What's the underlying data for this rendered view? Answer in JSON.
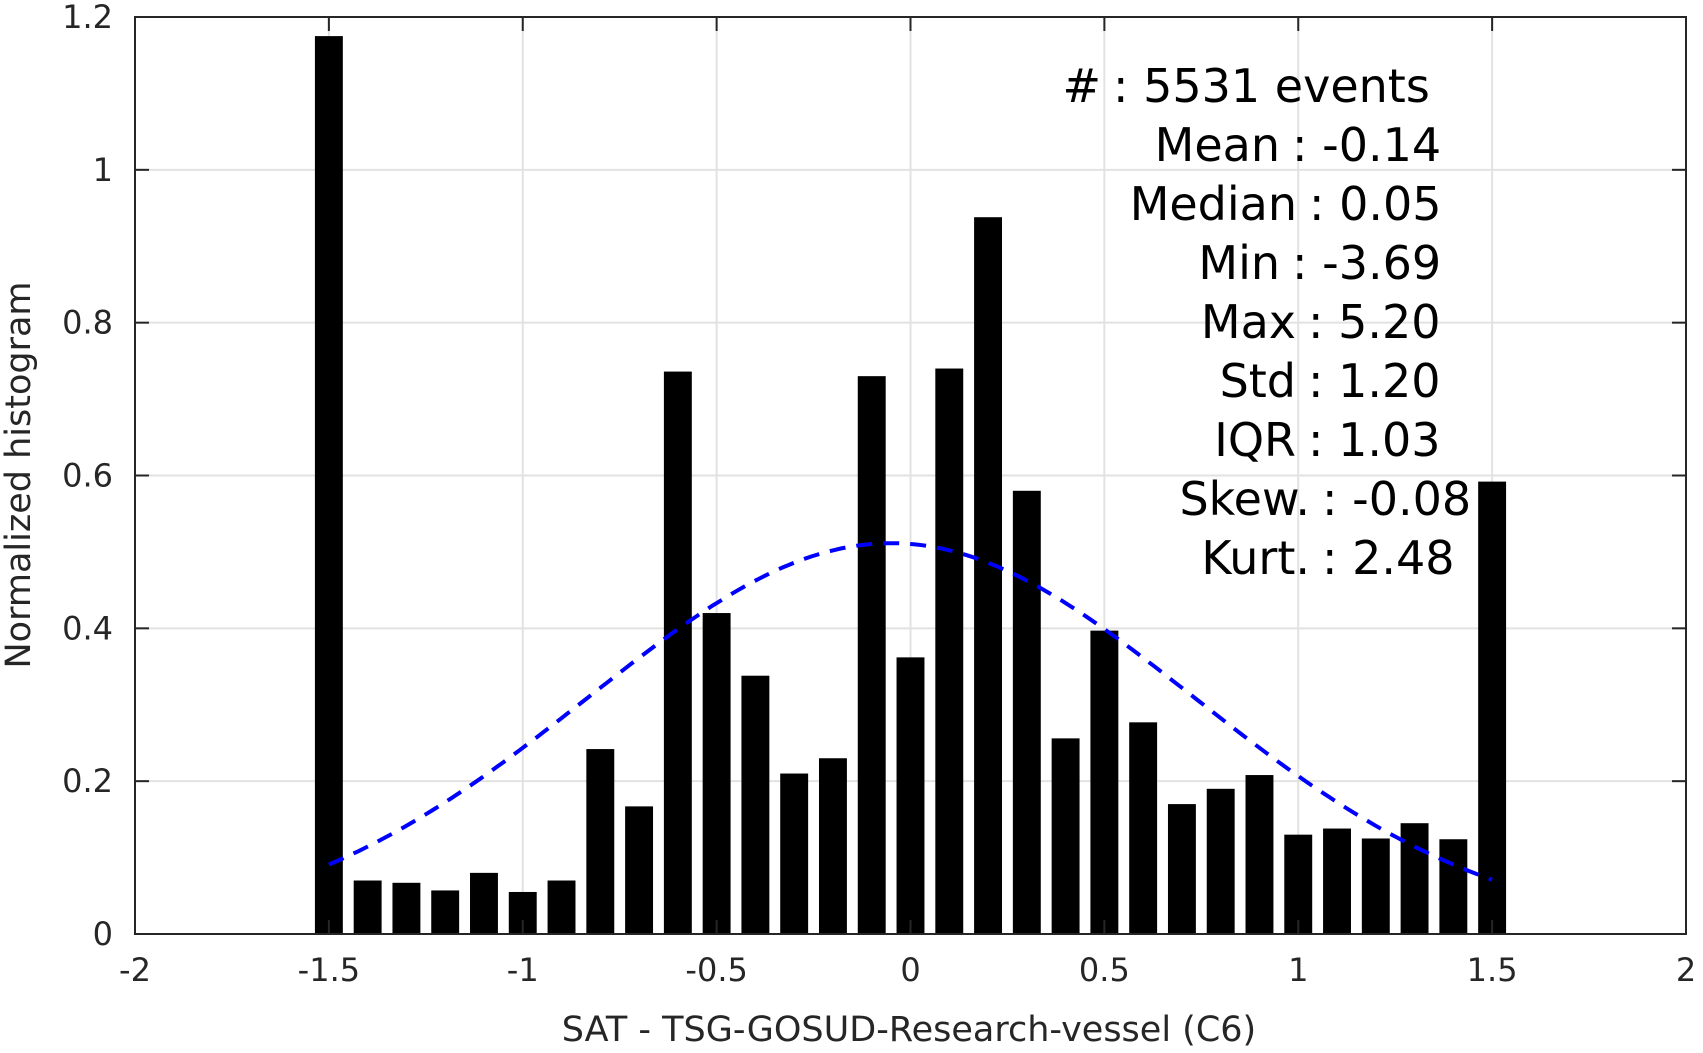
{
  "chart_data": {
    "type": "bar",
    "xlabel": "SAT - TSG-GOSUD-Research-vessel (C6)",
    "ylabel": "Normalized histogram",
    "xlim": [
      -2,
      2
    ],
    "ylim": [
      0,
      1.2
    ],
    "xticks": [
      "-2",
      "-1.5",
      "-1",
      "-0.5",
      "0",
      "0.5",
      "1",
      "1.5",
      "2"
    ],
    "yticks": [
      "0",
      "0.2",
      "0.4",
      "0.6",
      "0.8",
      "1",
      "1.2"
    ],
    "grid": true,
    "bar_color": "#000000",
    "bins": [
      -1.5,
      -1.4,
      -1.3,
      -1.2,
      -1.1,
      -1.0,
      -0.9,
      -0.8,
      -0.7,
      -0.6,
      -0.5,
      -0.4,
      -0.3,
      -0.2,
      -0.1,
      0.0,
      0.1,
      0.2,
      0.3,
      0.4,
      0.5,
      0.6,
      0.7,
      0.8,
      0.9,
      1.0,
      1.1,
      1.2,
      1.3,
      1.4,
      1.5
    ],
    "values": [
      1.175,
      0.07,
      0.067,
      0.057,
      0.08,
      0.055,
      0.07,
      0.242,
      0.167,
      0.736,
      0.42,
      0.338,
      0.21,
      0.23,
      0.73,
      0.362,
      0.74,
      0.938,
      0.58,
      0.256,
      0.397,
      0.277,
      0.17,
      0.19,
      0.208,
      0.13,
      0.138,
      0.125,
      0.145,
      0.124,
      0.592
    ],
    "fit": {
      "type": "gaussian",
      "mean": -0.05,
      "std": 0.78,
      "x_range": [
        -1.5,
        1.5
      ],
      "color": "#0000ff",
      "style": "dashed"
    },
    "stats": [
      {
        "label": "#  : 5531 events"
      },
      {
        "label": "Mean : -0.14"
      },
      {
        "label": "Median : 0.05"
      },
      {
        "label": "Min : -3.69"
      },
      {
        "label": "Max : 5.20"
      },
      {
        "label": "Std : 1.20"
      },
      {
        "label": "IQR : 1.03"
      },
      {
        "label": "Skew. : -0.08"
      },
      {
        "label": "Kurt. : 2.48"
      }
    ]
  }
}
